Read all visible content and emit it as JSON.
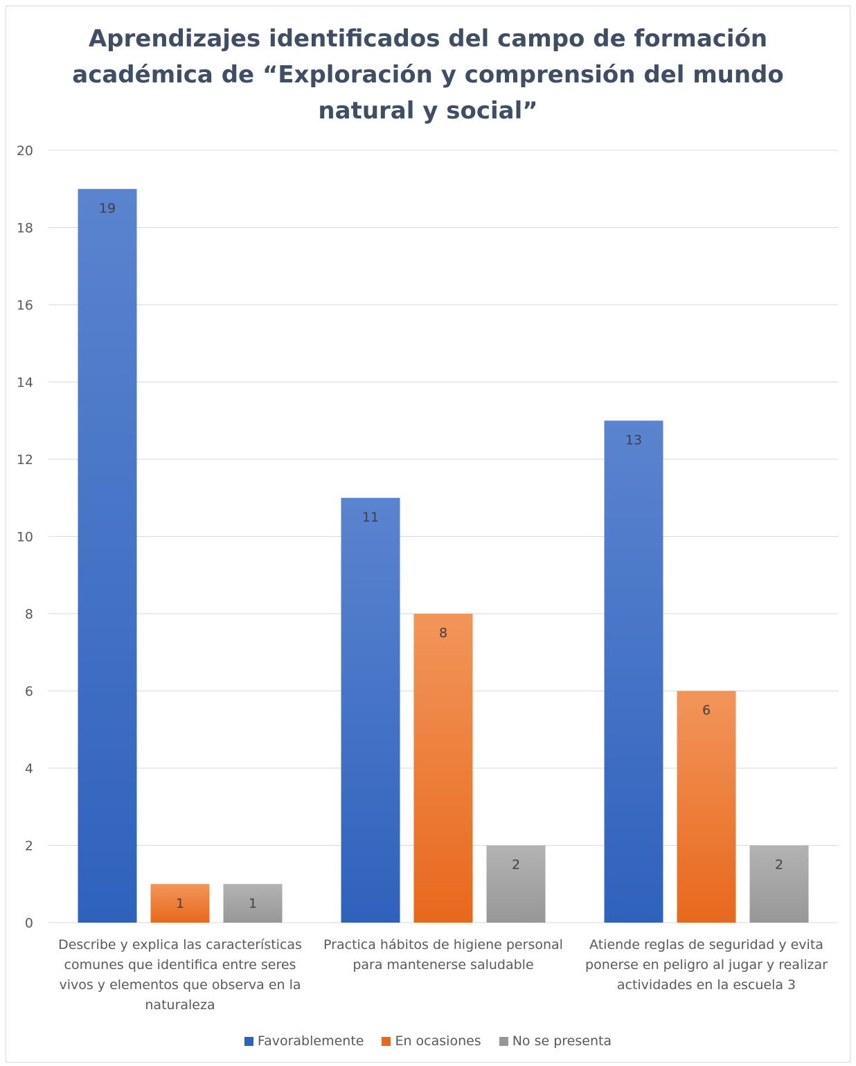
{
  "chart_data": {
    "type": "bar",
    "title_lines": [
      "Aprendizajes identificados del campo de formación",
      "académica de “Exploración y comprensión del mundo",
      "natural y social”"
    ],
    "categories": [
      [
        "Describe y explica las características",
        "comunes que identifica entre seres",
        "vivos  y elementos que observa en la",
        "naturaleza"
      ],
      [
        "Practica hábitos de higiene personal",
        "para mantenerse saludable"
      ],
      [
        "Atiende reglas de seguridad y evita",
        "ponerse en peligro al jugar y realizar",
        "actividades en la escuela 3"
      ]
    ],
    "series": [
      {
        "name": "Favorablemente",
        "values": [
          19,
          11,
          13
        ],
        "color_top": "#5b84cf",
        "color_bottom": "#2f62bd"
      },
      {
        "name": "En ocasiones",
        "values": [
          1,
          8,
          6
        ],
        "color_top": "#f2955a",
        "color_bottom": "#e8681c"
      },
      {
        "name": "No se presenta",
        "values": [
          1,
          2,
          2
        ],
        "color_top": "#b3b3b3",
        "color_bottom": "#979797"
      }
    ],
    "y_ticks": [
      "0",
      "2",
      "4",
      "6",
      "8",
      "10",
      "12",
      "14",
      "16",
      "18",
      "20"
    ],
    "ylim": [
      0,
      20
    ],
    "grid": true,
    "data_labels": true,
    "legend_position": "bottom"
  }
}
